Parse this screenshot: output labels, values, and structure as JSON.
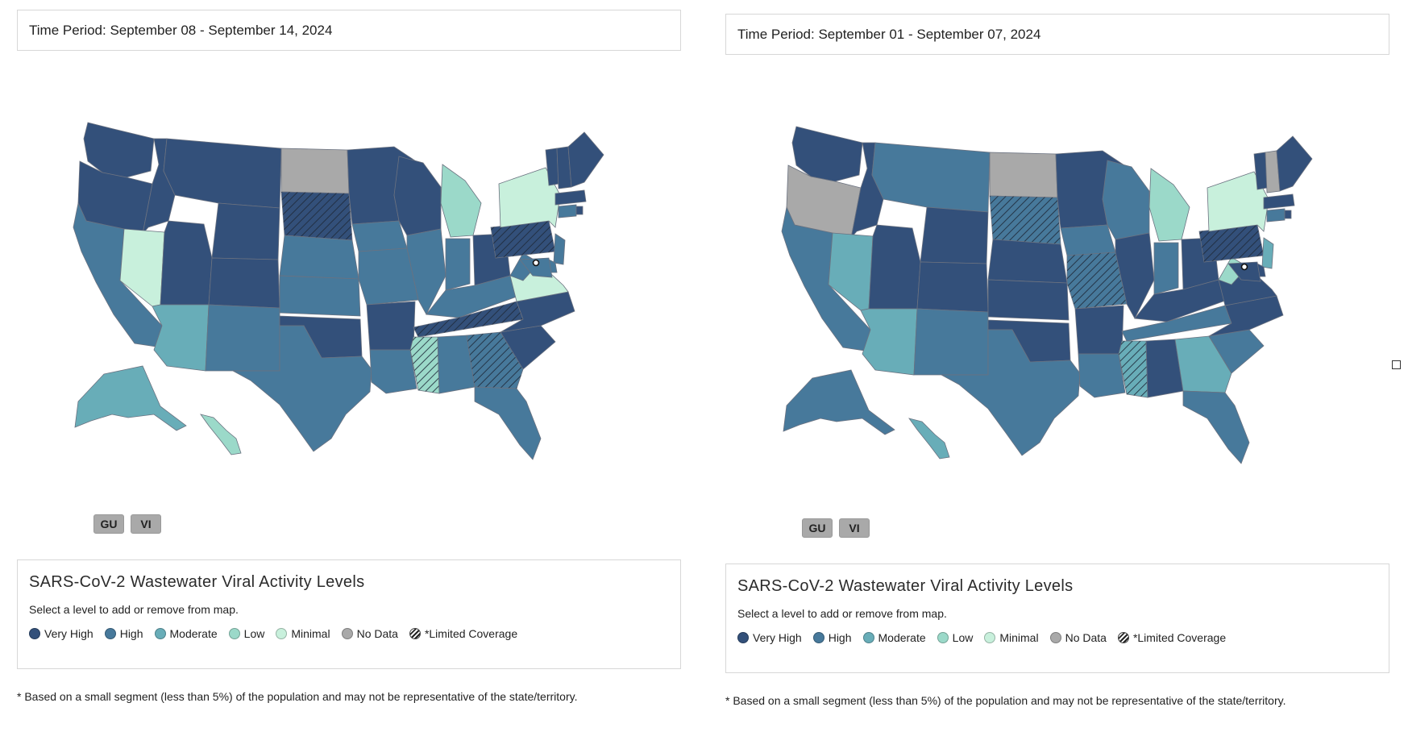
{
  "colors": {
    "very_high": "#33507a",
    "high": "#47799b",
    "moderate": "#68adb8",
    "low": "#9bd9c9",
    "minimal": "#c8f0dc",
    "no_data": "#a9a9a9",
    "border": "#6b7280"
  },
  "panels": [
    {
      "time_period": "Time Period: September 08 - September 14, 2024",
      "territories": [
        "GU",
        "VI"
      ],
      "legend": {
        "title": "SARS-CoV-2 Wastewater Viral Activity Levels",
        "subtitle": "Select a level to add or remove from map.",
        "items": [
          "Very High",
          "High",
          "Moderate",
          "Low",
          "Minimal",
          "No Data",
          "*Limited Coverage"
        ]
      },
      "footnote": "* Based on a small segment (less than 5%) of the population and may not be representative of the state/territory.",
      "states": {
        "WA": "very_high",
        "OR": "very_high",
        "ID": "very_high",
        "MT": "very_high",
        "WY": "very_high",
        "ND": "no_data",
        "SD": "very_high*",
        "MN": "very_high",
        "WI": "very_high",
        "MI": "low",
        "NY": "minimal",
        "VT": "very_high",
        "NH": "very_high",
        "ME": "very_high",
        "MA": "very_high",
        "CA": "high",
        "NV": "minimal",
        "UT": "very_high",
        "CO": "very_high",
        "AZ": "moderate",
        "NM": "high",
        "NE": "high",
        "KS": "high",
        "OK": "very_high",
        "TX": "high",
        "IA": "high",
        "MO": "high",
        "AR": "very_high",
        "LA": "high",
        "IL": "high",
        "IN": "high",
        "OH": "very_high",
        "KY": "high",
        "TN": "very_high*",
        "MS": "low*",
        "AL": "high",
        "GA": "high*",
        "FL": "high",
        "SC": "very_high",
        "NC": "very_high",
        "VA": "minimal",
        "WV": "high",
        "PA": "very_high*",
        "NJ": "high",
        "MD": "high",
        "DE": "high",
        "CT": "high",
        "RI": "very_high",
        "AK": "moderate",
        "HI": "low"
      }
    },
    {
      "time_period": "Time Period: September 01 - September 07, 2024",
      "territories": [
        "GU",
        "VI"
      ],
      "legend": {
        "title": "SARS-CoV-2 Wastewater Viral Activity Levels",
        "subtitle": "Select a level to add or remove from map.",
        "items": [
          "Very High",
          "High",
          "Moderate",
          "Low",
          "Minimal",
          "No Data",
          "*Limited Coverage"
        ]
      },
      "footnote": "* Based on a small segment (less than 5%) of the population and may not be representative of the state/territory.",
      "states": {
        "WA": "very_high",
        "OR": "no_data",
        "ID": "very_high",
        "MT": "high",
        "WY": "very_high",
        "ND": "no_data",
        "SD": "high*",
        "MN": "very_high",
        "WI": "high",
        "MI": "low",
        "NY": "minimal",
        "VT": "very_high",
        "NH": "no_data",
        "ME": "very_high",
        "MA": "very_high",
        "CA": "high",
        "NV": "moderate",
        "UT": "very_high",
        "CO": "very_high",
        "AZ": "moderate",
        "NM": "high",
        "NE": "very_high",
        "KS": "very_high",
        "OK": "very_high",
        "TX": "high",
        "IA": "high",
        "MO": "high*",
        "AR": "very_high",
        "LA": "high",
        "IL": "very_high",
        "IN": "high",
        "OH": "very_high",
        "KY": "very_high",
        "TN": "high",
        "MS": "moderate*",
        "AL": "very_high",
        "GA": "moderate",
        "FL": "high",
        "SC": "high",
        "NC": "very_high",
        "VA": "very_high",
        "WV": "low",
        "PA": "very_high*",
        "NJ": "moderate",
        "MD": "very_high",
        "DE": "very_high",
        "CT": "high",
        "RI": "very_high",
        "AK": "high",
        "HI": "moderate"
      }
    }
  ]
}
